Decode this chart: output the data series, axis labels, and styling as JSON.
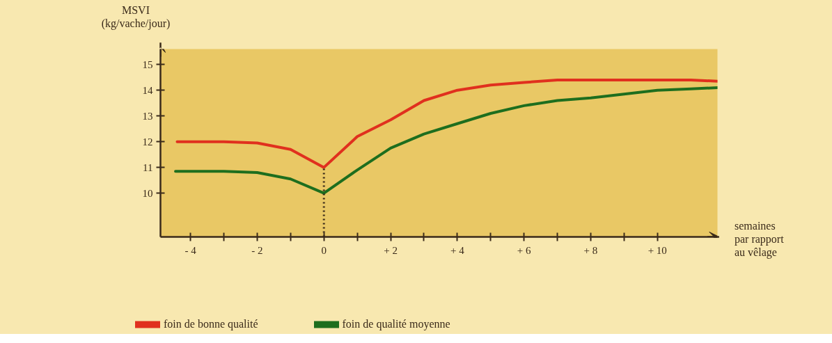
{
  "chart_data": {
    "type": "line",
    "ylabel": "MSVI\n(kg/vache/jour)",
    "xlabel": "semaines\npar rapport\nau vêlage",
    "xlim": [
      -4.9,
      11.8
    ],
    "ylim": [
      8.3,
      15.6
    ],
    "xticks": [
      {
        "value": -4,
        "label": "- 4"
      },
      {
        "value": -3,
        "label": null
      },
      {
        "value": -2,
        "label": "- 2"
      },
      {
        "value": -1,
        "label": null
      },
      0,
      {
        "value": 1,
        "label": null
      },
      {
        "value": 2,
        "label": "+ 2"
      },
      {
        "value": 3,
        "label": null
      },
      {
        "value": 4,
        "label": "+ 4"
      },
      {
        "value": 5,
        "label": null
      },
      {
        "value": 6,
        "label": "+ 6"
      },
      {
        "value": 7,
        "label": null
      },
      {
        "value": 8,
        "label": "+ 8"
      },
      {
        "value": 9,
        "label": null
      },
      {
        "value": 10,
        "label": "+ 10"
      }
    ],
    "yticks": [
      10,
      11,
      12,
      13,
      14,
      15
    ],
    "grid": false,
    "legend": "bottom",
    "marker": "none",
    "line_style": "solid",
    "ref_lines": [
      {
        "axis": "x",
        "value": 0,
        "line_style": "dotted",
        "color": "#3a2a1a"
      }
    ],
    "series": [
      {
        "name": "foin de bonne qualité",
        "color": "#e0301e",
        "x": [
          -4.4,
          -3,
          -2,
          -1,
          0,
          1,
          2,
          3,
          4,
          5,
          6,
          7,
          8,
          9,
          10,
          11,
          11.8
        ],
        "values": [
          12.0,
          12.0,
          11.95,
          11.7,
          11.0,
          12.2,
          12.85,
          13.6,
          14.0,
          14.2,
          14.3,
          14.4,
          14.4,
          14.4,
          14.4,
          14.4,
          14.35
        ]
      },
      {
        "name": "foin de qualité moyenne",
        "color": "#1e6e1e",
        "x": [
          -4.45,
          -3,
          -2,
          -1,
          0,
          1,
          2,
          3,
          4,
          5,
          6,
          7,
          8,
          9,
          10,
          11,
          11.8
        ],
        "values": [
          10.85,
          10.85,
          10.8,
          10.55,
          10.0,
          10.9,
          11.75,
          12.3,
          12.7,
          13.1,
          13.4,
          13.6,
          13.7,
          13.85,
          14.0,
          14.05,
          14.1
        ]
      }
    ]
  }
}
